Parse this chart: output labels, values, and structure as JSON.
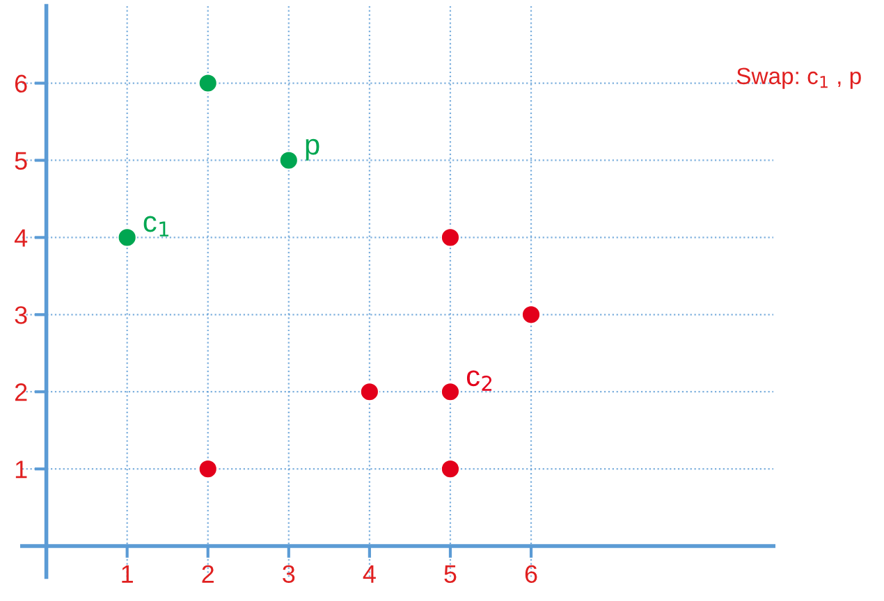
{
  "chart_data": {
    "type": "scatter",
    "series": [
      {
        "color": "#00a651",
        "x": [
          2,
          3,
          1
        ],
        "values": [
          6,
          5,
          4
        ]
      },
      {
        "color": "#e3001b",
        "x": [
          5,
          6,
          4,
          5,
          2,
          5
        ],
        "values": [
          4,
          3,
          2,
          2,
          1,
          1
        ]
      }
    ],
    "xlim": [
      -0.3,
      9
    ],
    "ylim": [
      -0.4,
      7
    ],
    "xticks": [
      1,
      2,
      3,
      4,
      5,
      6
    ],
    "yticks": [
      1,
      2,
      3,
      4,
      5,
      6
    ],
    "grid": true,
    "marker": "circle",
    "annotations": [
      {
        "text": "c$_{1}$",
        "x": 1,
        "y": 4
      },
      {
        "text": "p",
        "x": 3,
        "y": 5
      },
      {
        "text": "c$_{2}$",
        "x": 5,
        "y": 2
      },
      "Swap: c$_{1}$ , p"
    ]
  }
}
